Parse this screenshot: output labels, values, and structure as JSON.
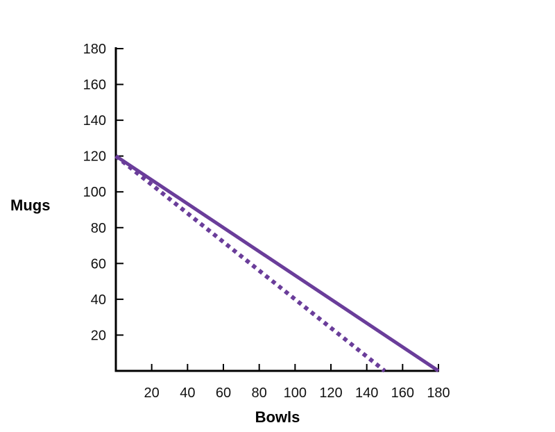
{
  "chart_data": {
    "type": "line",
    "title": "",
    "xlabel": "Bowls",
    "ylabel": "Mugs",
    "xlim": [
      0,
      180
    ],
    "ylim": [
      0,
      180
    ],
    "x_ticks": [
      20,
      40,
      60,
      80,
      100,
      120,
      140,
      160,
      180
    ],
    "y_ticks": [
      20,
      40,
      60,
      80,
      100,
      120,
      140,
      160,
      180
    ],
    "grid": false,
    "legend": "none",
    "series": [
      {
        "name": "solid line",
        "style": "solid",
        "color": "#6a3d9a",
        "x": [
          0,
          180
        ],
        "y": [
          120,
          0
        ]
      },
      {
        "name": "dashed line",
        "style": "dashed",
        "color": "#6a3d9a",
        "x": [
          0,
          150
        ],
        "y": [
          120,
          0
        ]
      }
    ]
  }
}
